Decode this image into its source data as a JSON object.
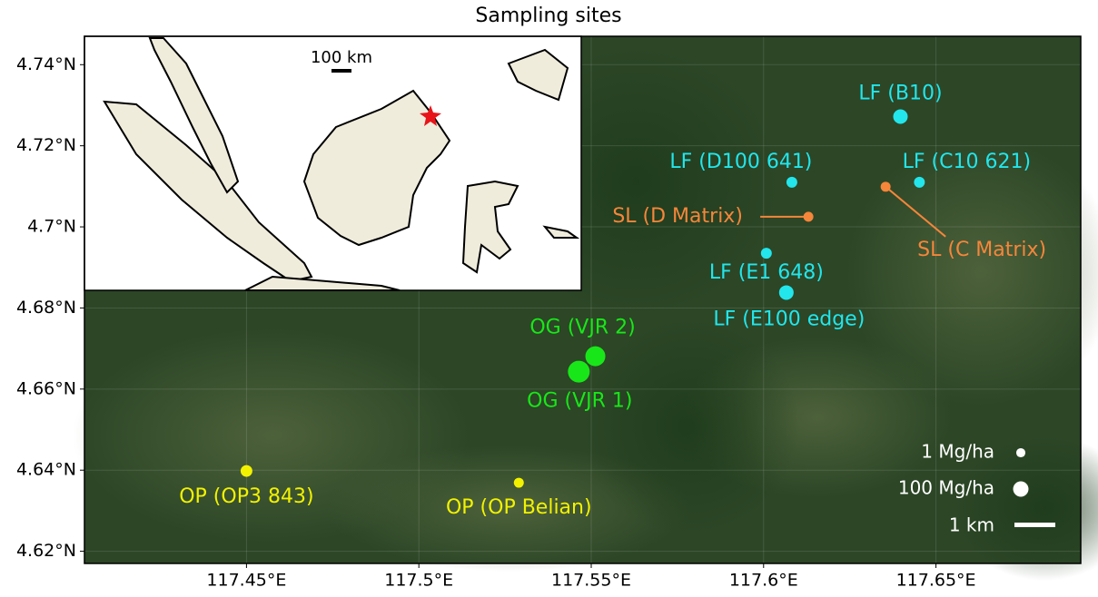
{
  "chart_data": {
    "type": "scatter",
    "title": "Sampling sites",
    "xlim": [
      117.403,
      117.692
    ],
    "ylim": [
      4.617,
      4.747
    ],
    "xticks": [
      {
        "value": 117.45,
        "label": "117.45°E"
      },
      {
        "value": 117.5,
        "label": "117.5°E"
      },
      {
        "value": 117.55,
        "label": "117.55°E"
      },
      {
        "value": 117.6,
        "label": "117.6°E"
      },
      {
        "value": 117.65,
        "label": "117.65°E"
      }
    ],
    "yticks": [
      {
        "value": 4.62,
        "label": "4.62°N"
      },
      {
        "value": 4.64,
        "label": "4.64°N"
      },
      {
        "value": 4.66,
        "label": "4.66°N"
      },
      {
        "value": 4.68,
        "label": "4.68°N"
      },
      {
        "value": 4.7,
        "label": "4.7°N"
      },
      {
        "value": 4.72,
        "label": "4.72°N"
      },
      {
        "value": 4.74,
        "label": "4.74°N"
      }
    ],
    "points": [
      {
        "label": "LF (B10)",
        "x": 117.6397,
        "y": 4.7272,
        "size": 83,
        "color": "#22e6ec"
      },
      {
        "label": "LF (D100 641)",
        "x": 117.6082,
        "y": 4.711,
        "size": 23,
        "color": "#22e6ec"
      },
      {
        "label": "LF (C10 621)",
        "x": 117.6452,
        "y": 4.711,
        "size": 23,
        "color": "#22e6ec"
      },
      {
        "label": "LF (E1 648)",
        "x": 117.6008,
        "y": 4.6935,
        "size": 23,
        "color": "#22e6ec"
      },
      {
        "label": "LF (E100 edge)",
        "x": 117.6066,
        "y": 4.6838,
        "size": 83,
        "color": "#22e6ec"
      },
      {
        "label": "SL (D Matrix)",
        "x": 117.613,
        "y": 4.7025,
        "size": 11,
        "color": "#f5863a"
      },
      {
        "label": "SL (C Matrix)",
        "x": 117.6354,
        "y": 4.7099,
        "size": 11,
        "color": "#f5863a"
      },
      {
        "label": "OG (VJR 2)",
        "x": 117.5512,
        "y": 4.6681,
        "size": 204,
        "color": "#19e619"
      },
      {
        "label": "OG (VJR 1)",
        "x": 117.5464,
        "y": 4.6643,
        "size": 253,
        "color": "#19e619"
      },
      {
        "label": "OP (OP3 843)",
        "x": 117.45,
        "y": 4.6398,
        "size": 36,
        "color": "#f2f200"
      },
      {
        "label": "OP (OP Belian)",
        "x": 117.529,
        "y": 4.6369,
        "size": 11,
        "color": "#f2f200"
      }
    ],
    "size_legend": [
      {
        "label": "1 Mg/ha",
        "value": 1
      },
      {
        "label": "100 Mg/ha",
        "value": 100
      }
    ],
    "scale_bar": "1 km",
    "inset": {
      "scale_bar": "100 km"
    }
  }
}
